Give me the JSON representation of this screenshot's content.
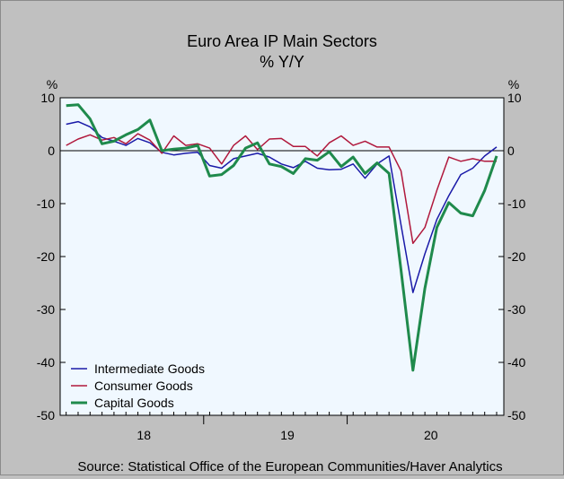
{
  "chart_data": {
    "type": "line",
    "title": "Euro Area IP Main Sectors",
    "subtitle": "% Y/Y",
    "ylabel_left": "%",
    "ylabel_right": "%",
    "ylim": [
      -50,
      10
    ],
    "yticks": [
      10,
      0,
      -10,
      -20,
      -30,
      -40,
      -50
    ],
    "ytick_labels": [
      "10",
      "0",
      "-10",
      "-20",
      "-30",
      "-40",
      "-50"
    ],
    "xlim": [
      1,
      37
    ],
    "year_labels": [
      {
        "label": "18",
        "center": 7.5
      },
      {
        "label": "19",
        "center": 19.5
      },
      {
        "label": "20",
        "center": 31.5
      }
    ],
    "year_boundaries": [
      12.5,
      24.5
    ],
    "x_month_index": [
      1,
      2,
      3,
      4,
      5,
      6,
      7,
      8,
      9,
      10,
      11,
      12,
      13,
      14,
      15,
      16,
      17,
      18,
      19,
      20,
      21,
      22,
      23,
      24,
      25,
      26,
      27,
      28,
      29,
      30,
      31,
      32,
      33,
      34,
      35,
      36,
      37
    ],
    "series": [
      {
        "name": "Intermediate Goods",
        "color": "#1a1aa8",
        "values": [
          5.0,
          5.5,
          4.5,
          2.5,
          1.8,
          1.0,
          2.3,
          1.5,
          -0.3,
          -0.8,
          -0.5,
          -0.3,
          -2.8,
          -3.3,
          -1.5,
          -1.0,
          -0.5,
          -1.2,
          -2.5,
          -3.2,
          -2.0,
          -3.3,
          -3.6,
          -3.5,
          -2.5,
          -5.2,
          -2.5,
          -1.0,
          -14.0,
          -26.8,
          -19.5,
          -13.0,
          -8.5,
          -4.5,
          -3.3,
          -1.0,
          0.7
        ]
      },
      {
        "name": "Consumer Goods",
        "color": "#b0183c",
        "values": [
          1.0,
          2.2,
          3.0,
          2.0,
          2.5,
          1.3,
          3.2,
          2.0,
          -0.5,
          2.8,
          1.0,
          1.3,
          0.5,
          -2.5,
          1.0,
          2.8,
          0.2,
          2.2,
          2.3,
          0.8,
          0.8,
          -1.0,
          1.5,
          2.8,
          1.0,
          1.8,
          0.7,
          0.7,
          -3.8,
          -17.5,
          -14.5,
          -7.5,
          -1.2,
          -2.0,
          -1.5,
          -2.0,
          -2.0
        ]
      },
      {
        "name": "Capital Goods",
        "color": "#1f8a4c",
        "values": [
          8.5,
          8.7,
          6.0,
          1.3,
          1.8,
          3.0,
          4.0,
          5.8,
          0.0,
          0.3,
          0.5,
          1.0,
          -4.8,
          -4.5,
          -2.8,
          0.5,
          1.5,
          -2.5,
          -3.0,
          -4.3,
          -1.5,
          -1.8,
          -0.2,
          -3.0,
          -1.2,
          -4.3,
          -2.3,
          -4.3,
          -22.5,
          -41.5,
          -26.0,
          -14.5,
          -9.8,
          -11.8,
          -12.3,
          -7.5,
          -1.0
        ]
      }
    ],
    "legend_position": "bottom-left",
    "source": "Source:  Statistical Office of the European Communities/Haver Analytics",
    "colors": {
      "background": "#c0c0c0",
      "plot_background": "#f0f8ff",
      "zero_line": "#000000"
    }
  }
}
